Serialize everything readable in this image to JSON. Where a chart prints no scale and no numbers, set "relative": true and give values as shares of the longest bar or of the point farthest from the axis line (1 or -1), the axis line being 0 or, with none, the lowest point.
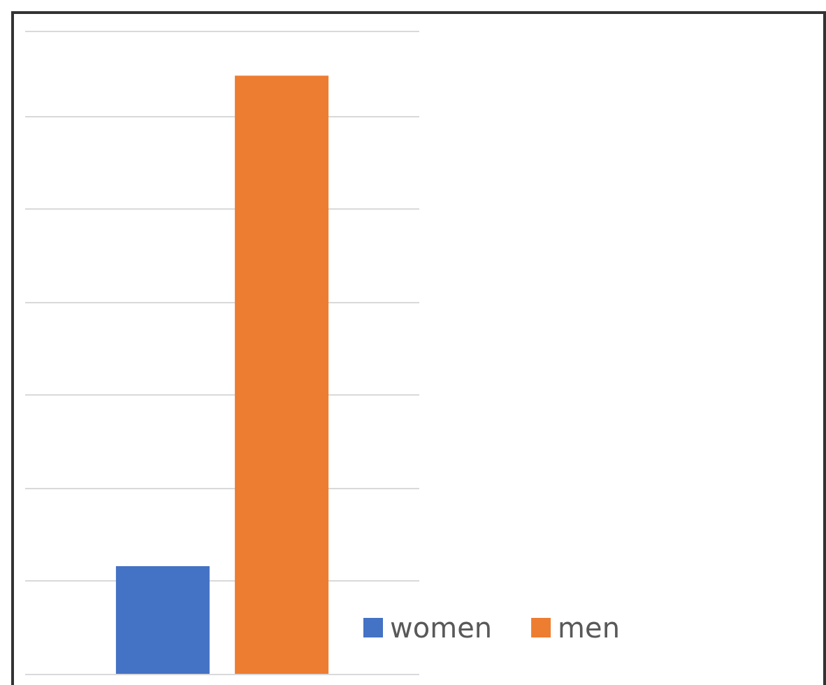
{
  "chart_data": {
    "type": "bar",
    "relative": true,
    "categories": [
      null
    ],
    "series": [
      {
        "name": "women",
        "color": "#4472c4",
        "values": [
          0.18
        ]
      },
      {
        "name": "men",
        "color": "#ed7d31",
        "values": [
          1
        ]
      }
    ],
    "grid": "y",
    "legend": "bottom"
  }
}
